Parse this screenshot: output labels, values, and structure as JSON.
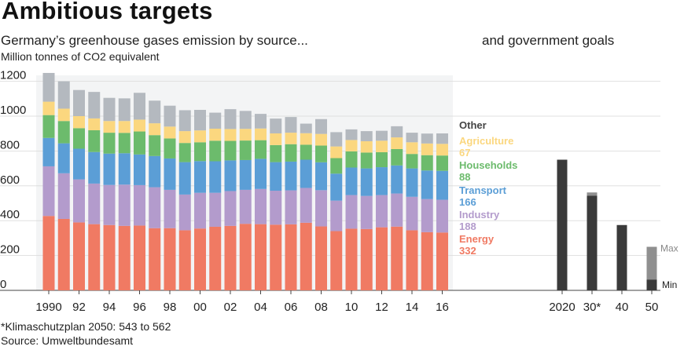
{
  "headline": "Ambitious targets",
  "subtitle_left": "Germany’s greenhouse gases emission by source...",
  "subtitle_right": "and government goals",
  "units": "Million tonnes of CO2 equivalent",
  "footnote": "*Klimaschutzplan 2050: 543 to 562",
  "source": "Source: Umweltbundesamt",
  "colors": {
    "Energy": "#f07a63",
    "Industry": "#b39bcc",
    "Transport": "#5b9ed6",
    "Households": "#6cbb6c",
    "Agriculture": "#fbd77f",
    "Other": "#b4b9bf",
    "goal": "#3a3a3a",
    "goal_range": "#8f8f8f"
  },
  "chart_data": [
    {
      "type": "bar",
      "stacked": true,
      "title": "Germany’s greenhouse gases emission by source...",
      "ylabel": "Million tonnes of CO2 equivalent",
      "ylim": [
        0,
        1250
      ],
      "yticks": [
        0,
        200,
        400,
        600,
        800,
        1000,
        1200
      ],
      "ytick_labels": [
        "0",
        "200",
        "400",
        "600",
        "800",
        "1000",
        "1200"
      ],
      "xtick_labels": [
        "1990",
        "92",
        "94",
        "96",
        "98",
        "00",
        "02",
        "04",
        "06",
        "08",
        "10",
        "12",
        "14",
        "16"
      ],
      "categories": [
        "1990",
        "1991",
        "1992",
        "1993",
        "1994",
        "1995",
        "1996",
        "1997",
        "1998",
        "1999",
        "2000",
        "2001",
        "2002",
        "2003",
        "2004",
        "2005",
        "2006",
        "2007",
        "2008",
        "2009",
        "2010",
        "2011",
        "2012",
        "2013",
        "2014",
        "2015",
        "2016"
      ],
      "series": [
        {
          "name": "Energy",
          "values": [
            427,
            410,
            390,
            380,
            375,
            370,
            372,
            357,
            357,
            345,
            355,
            365,
            370,
            382,
            380,
            377,
            379,
            388,
            367,
            340,
            354,
            352,
            362,
            366,
            345,
            334,
            332
          ]
        },
        {
          "name": "Industry",
          "values": [
            285,
            262,
            247,
            233,
            230,
            237,
            232,
            235,
            220,
            205,
            205,
            195,
            200,
            195,
            202,
            195,
            195,
            200,
            208,
            175,
            193,
            190,
            185,
            190,
            192,
            190,
            188
          ]
        },
        {
          "name": "Transport",
          "values": [
            163,
            172,
            176,
            181,
            180,
            180,
            176,
            179,
            180,
            186,
            182,
            181,
            176,
            171,
            173,
            164,
            165,
            162,
            160,
            155,
            158,
            158,
            160,
            161,
            163,
            164,
            166
          ]
        },
        {
          "name": "Households",
          "values": [
            131,
            128,
            118,
            125,
            120,
            117,
            132,
            120,
            115,
            110,
            108,
            118,
            112,
            112,
            107,
            98,
            100,
            86,
            96,
            89,
            93,
            91,
            86,
            94,
            83,
            88,
            88
          ]
        },
        {
          "name": "Agriculture",
          "values": [
            77,
            71,
            69,
            68,
            67,
            68,
            68,
            68,
            68,
            68,
            68,
            69,
            68,
            67,
            67,
            67,
            66,
            66,
            67,
            67,
            65,
            65,
            66,
            67,
            67,
            67,
            67
          ]
        },
        {
          "name": "Other",
          "values": [
            165,
            157,
            150,
            152,
            133,
            130,
            154,
            130,
            120,
            120,
            118,
            92,
            114,
            103,
            84,
            85,
            90,
            55,
            85,
            82,
            61,
            58,
            57,
            64,
            55,
            57,
            60
          ]
        }
      ],
      "end_labels": [
        {
          "name": "Other",
          "value": ""
        },
        {
          "name": "Agriculture",
          "value": "67"
        },
        {
          "name": "Households",
          "value": "88"
        },
        {
          "name": "Transport",
          "value": "166"
        },
        {
          "name": "Industry",
          "value": "188"
        },
        {
          "name": "Energy",
          "value": "332"
        }
      ]
    },
    {
      "type": "bar",
      "title": "and government goals",
      "ylim": [
        0,
        1250
      ],
      "categories": [
        "2020",
        "30*",
        "40",
        "50"
      ],
      "values": [
        750,
        543,
        375,
        62
      ],
      "range_top": [
        null,
        562,
        null,
        250
      ],
      "range_labels": {
        "max": "Max",
        "min": "Min"
      }
    }
  ]
}
